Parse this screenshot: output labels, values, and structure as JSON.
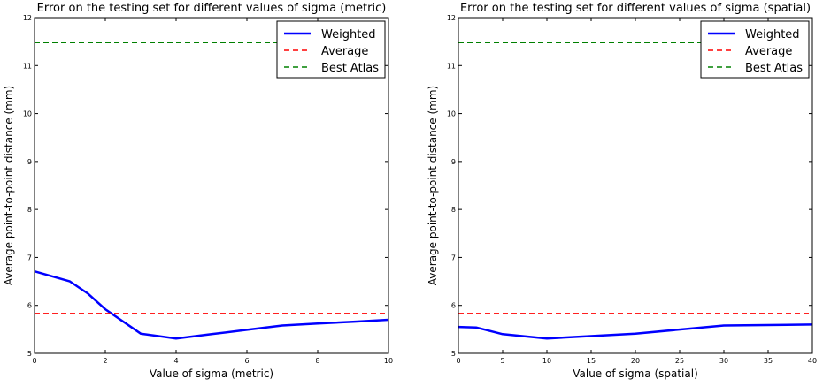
{
  "chart_data": [
    {
      "type": "line",
      "title": "Error on the testing set for different values of sigma (metric)",
      "xlabel": "Value of sigma (metric)",
      "ylabel": "Average point-to-point distance (mm)",
      "xlim": [
        0,
        10
      ],
      "ylim": [
        5,
        12
      ],
      "xticks": [
        0,
        2,
        4,
        6,
        8,
        10
      ],
      "yticks": [
        5,
        6,
        7,
        8,
        9,
        10,
        11,
        12
      ],
      "grid": false,
      "legend_position": "top-right",
      "series": [
        {
          "name": "Weighted",
          "style": "solid",
          "color": "#0000ff",
          "x": [
            0,
            1,
            1.5,
            2,
            3,
            4,
            5,
            6,
            7,
            8,
            9,
            10
          ],
          "y": [
            6.71,
            6.5,
            6.25,
            5.92,
            5.41,
            5.31,
            5.4,
            5.49,
            5.58,
            5.62,
            5.66,
            5.7
          ]
        },
        {
          "name": "Average",
          "style": "dashed",
          "color": "#ff0000",
          "x": [
            0,
            10
          ],
          "y": [
            5.83,
            5.83
          ]
        },
        {
          "name": "Best Atlas",
          "style": "dashed",
          "color": "#008000",
          "x": [
            0,
            10
          ],
          "y": [
            11.48,
            11.48
          ]
        }
      ]
    },
    {
      "type": "line",
      "title": "Error on the testing set for different values of sigma (spatial)",
      "xlabel": "Value of sigma (spatial)",
      "ylabel": "Average point-to-point distance (mm)",
      "xlim": [
        0,
        40
      ],
      "ylim": [
        5,
        12
      ],
      "xticks": [
        0,
        5,
        10,
        15,
        20,
        25,
        30,
        35,
        40
      ],
      "yticks": [
        5,
        6,
        7,
        8,
        9,
        10,
        11,
        12
      ],
      "grid": false,
      "legend_position": "top-right",
      "series": [
        {
          "name": "Weighted",
          "style": "solid",
          "color": "#0000ff",
          "x": [
            0,
            2,
            5,
            10,
            20,
            30,
            40
          ],
          "y": [
            5.55,
            5.54,
            5.4,
            5.31,
            5.41,
            5.58,
            5.6
          ]
        },
        {
          "name": "Average",
          "style": "dashed",
          "color": "#ff0000",
          "x": [
            0,
            40
          ],
          "y": [
            5.83,
            5.83
          ]
        },
        {
          "name": "Best Atlas",
          "style": "dashed",
          "color": "#008000",
          "x": [
            0,
            40
          ],
          "y": [
            11.48,
            11.48
          ]
        }
      ]
    }
  ]
}
